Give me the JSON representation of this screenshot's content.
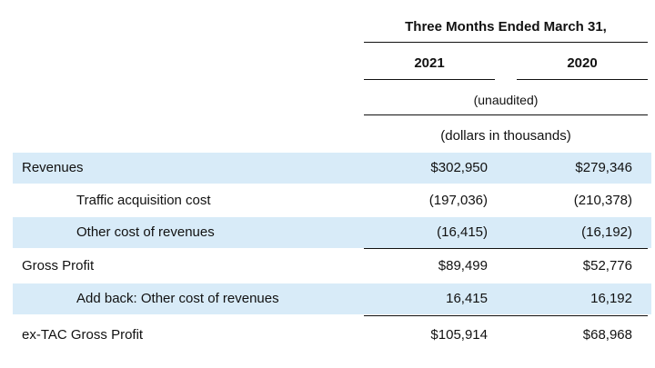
{
  "header": {
    "period_title": "Three Months Ended March  31,",
    "year_1": "2021",
    "year_2": "2020",
    "audit_note": "(unaudited)",
    "units_note": "(dollars in thousands)"
  },
  "rows": [
    {
      "label": "Revenues",
      "v2021": "$302,950",
      "v2020": "$279,346"
    },
    {
      "label": "Traffic acquisition cost",
      "v2021": "(197,036)",
      "v2020": "(210,378)"
    },
    {
      "label": "Other cost of revenues",
      "v2021": "(16,415)",
      "v2020": "(16,192)"
    },
    {
      "label": "Gross Profit",
      "v2021": "$89,499",
      "v2020": "$52,776"
    },
    {
      "label": "Add back: Other cost of revenues",
      "v2021": "16,415",
      "v2020": "16,192"
    },
    {
      "label": "ex-TAC Gross Profit",
      "v2021": "$105,914",
      "v2020": "$68,968"
    }
  ],
  "colors": {
    "row_highlight": "#d8ebf8",
    "text": "#111111",
    "rule": "#111111"
  }
}
